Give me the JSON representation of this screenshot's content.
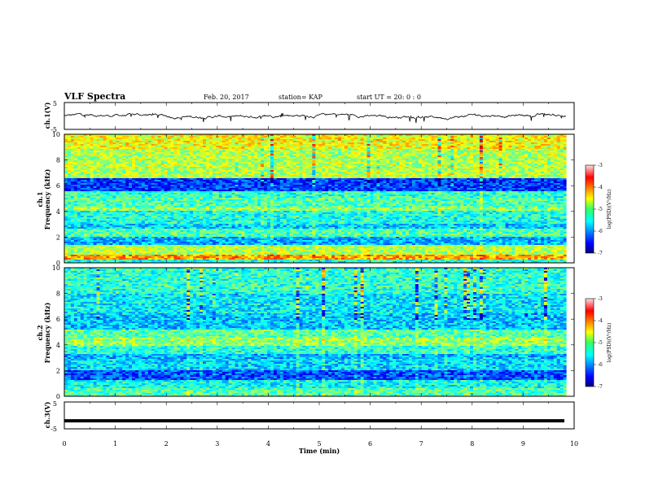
{
  "header": {
    "title": "VLF Spectra",
    "date": "Feb. 20, 2017",
    "station": "station= KAP",
    "start_time": "start  UT =   20: 0  : 0"
  },
  "chart_data": [
    {
      "panel": "ch1-waveform",
      "type": "line",
      "ylabel": "ch.1(V)",
      "ylim": [
        -5,
        5
      ],
      "yticks": [
        "5",
        "-5"
      ],
      "xlim": [
        0,
        10
      ],
      "series": [
        {
          "color": "#000000"
        }
      ]
    },
    {
      "panel": "ch1-spectrogram",
      "type": "heatmap",
      "ylabel_line1": "ch.1",
      "ylabel_line2": "Frequency  (kHz)",
      "ylim": [
        0,
        10
      ],
      "yticks": [
        "0",
        "2",
        "4",
        "6",
        "8",
        "10"
      ],
      "xlim": [
        0,
        10
      ],
      "colorbar": {
        "label": "log(PSD)(V²/Hz)",
        "range": [
          -7,
          -3
        ],
        "ticks": [
          "-3",
          "-4",
          "-5",
          "-6",
          "-7"
        ]
      }
    },
    {
      "panel": "ch2-spectrogram",
      "type": "heatmap",
      "ylabel_line1": "ch.2",
      "ylabel_line2": "Frequency  (kHz)",
      "ylim": [
        0,
        10
      ],
      "yticks": [
        "0",
        "2",
        "4",
        "6",
        "8",
        "10"
      ],
      "xlim": [
        0,
        10
      ],
      "colorbar": {
        "label": "log(PSD)(V²/Hz)",
        "range": [
          -7,
          -3
        ],
        "ticks": [
          "-3",
          "-4",
          "-5",
          "-6",
          "-7"
        ]
      }
    },
    {
      "panel": "ch3-waveform",
      "type": "line",
      "ylabel": "ch.3(V)",
      "ylim": [
        -5,
        5
      ],
      "yticks": [
        "5",
        "-5"
      ],
      "xlim": [
        0,
        10
      ],
      "xlabel": "Time  (min)",
      "xticks": [
        "0",
        "1",
        "2",
        "3",
        "4",
        "5",
        "6",
        "7",
        "8",
        "9",
        "10"
      ],
      "series": [
        {
          "constant_value": -2,
          "color": "#000000"
        }
      ]
    }
  ]
}
